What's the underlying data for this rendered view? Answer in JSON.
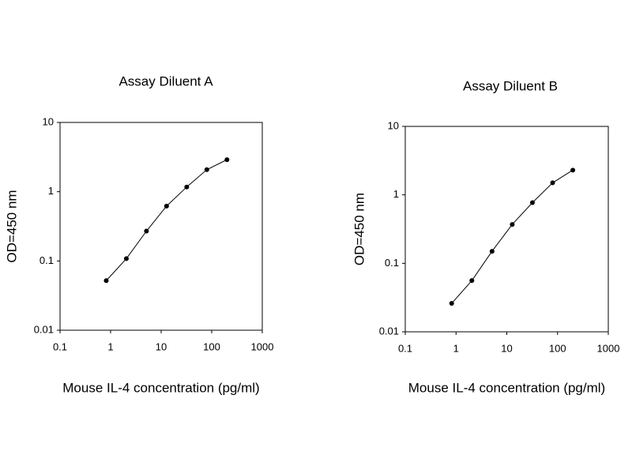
{
  "chart_data": [
    {
      "type": "line",
      "title": "Assay Diluent A",
      "x_label": "Mouse IL-4 concentration (pg/ml)",
      "y_label": "OD=450 nm",
      "x_scale": "log",
      "y_scale": "log",
      "color": "#000000",
      "markers": true,
      "x": [
        0.82,
        2.05,
        5.12,
        12.8,
        32,
        80,
        200
      ],
      "values": [
        0.052,
        0.108,
        0.27,
        0.62,
        1.17,
        2.08,
        2.9
      ],
      "xlim": [
        0.1,
        1000
      ],
      "xticks": [
        0.1,
        1,
        10,
        100,
        1000
      ],
      "ylim": [
        0.01,
        10
      ],
      "yticks": [
        0.01,
        0.1,
        1,
        10
      ]
    },
    {
      "type": "line",
      "title": "Assay Diluent B",
      "x_label": "Mouse IL-4 concentration (pg/ml)",
      "y_label": "OD=450 nm",
      "x_scale": "log",
      "y_scale": "log",
      "color": "#000000",
      "markers": true,
      "x": [
        0.82,
        2.05,
        5.12,
        12.8,
        32,
        80,
        200
      ],
      "values": [
        0.026,
        0.056,
        0.15,
        0.37,
        0.77,
        1.5,
        2.3
      ],
      "xlim": [
        0.1,
        1000
      ],
      "xticks": [
        0.1,
        1,
        10,
        100,
        1000
      ],
      "ylim": [
        0.01,
        10
      ],
      "yticks": [
        0.01,
        0.1,
        1,
        10
      ]
    }
  ]
}
